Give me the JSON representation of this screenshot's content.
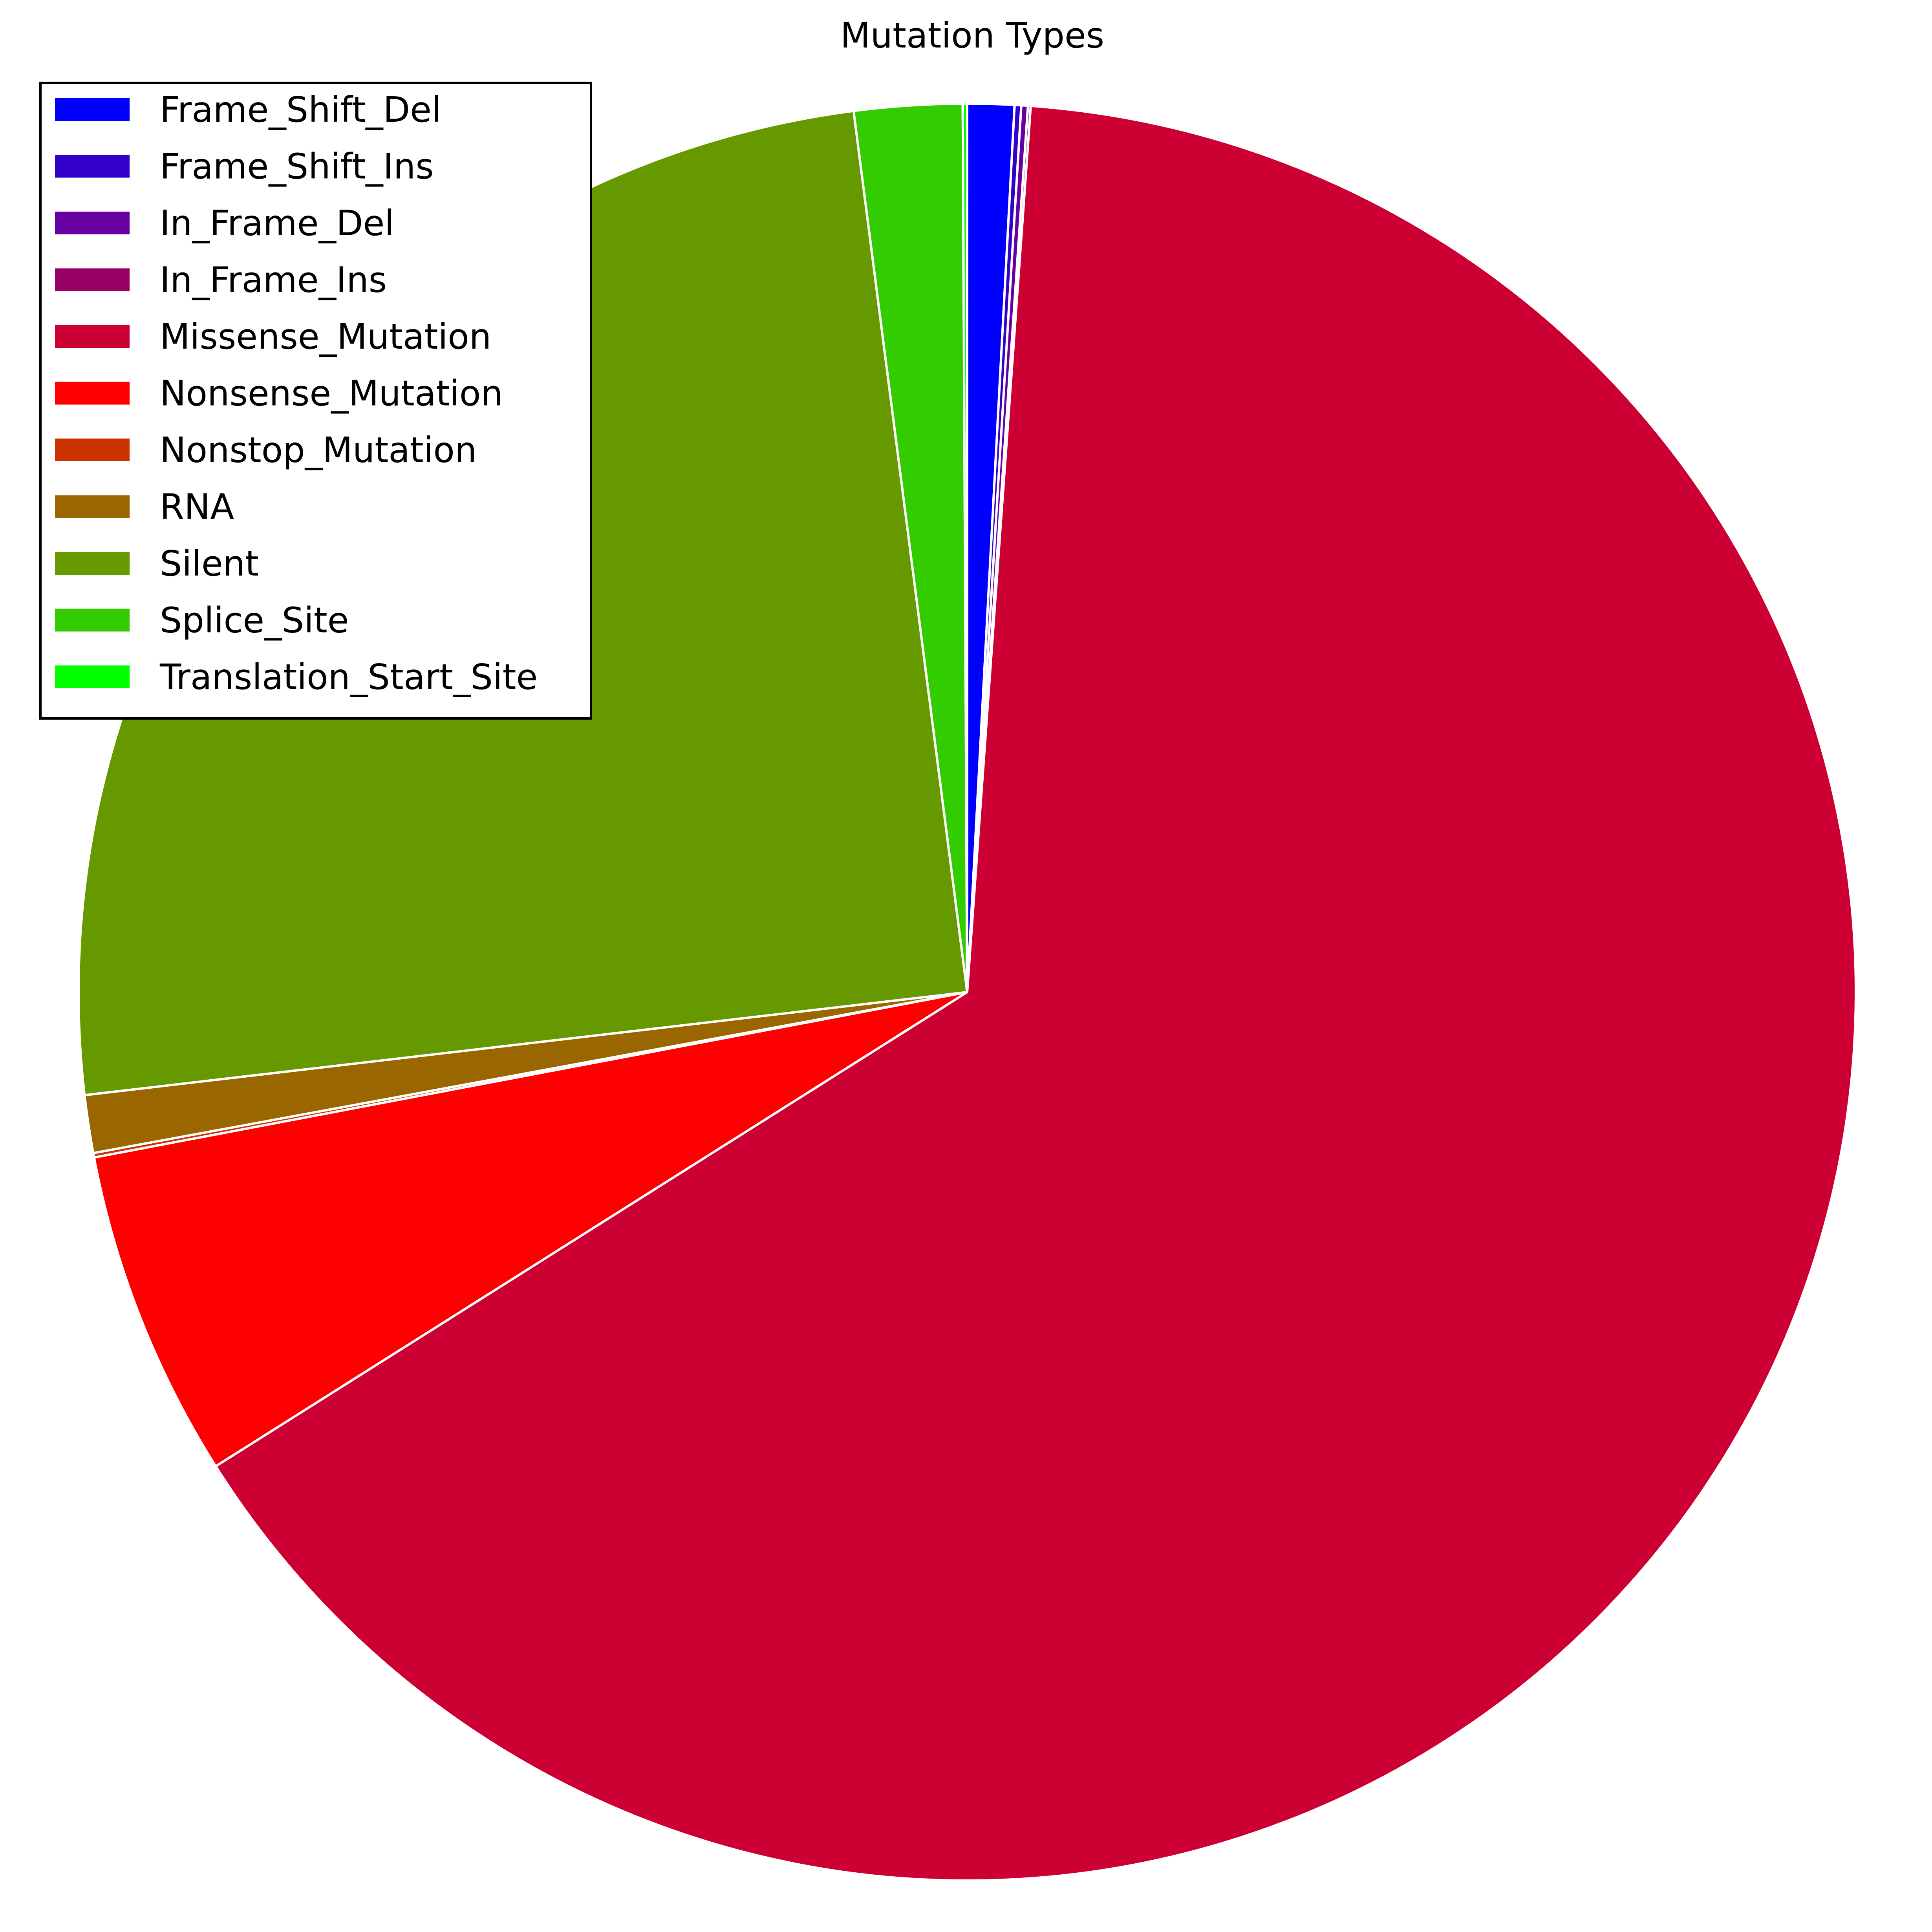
{
  "chart_data": {
    "type": "pie",
    "title": "Mutation Types",
    "start_angle_deg": 90,
    "direction": "clockwise",
    "edge_color": "#ffffff",
    "legend_position": "upper-left",
    "slices": [
      {
        "label": "Frame_Shift_Del",
        "value": 0.85,
        "color": "#0000ff"
      },
      {
        "label": "Frame_Shift_Ins",
        "value": 0.12,
        "color": "#3300cc"
      },
      {
        "label": "In_Frame_Del",
        "value": 0.12,
        "color": "#6600a0"
      },
      {
        "label": "In_Frame_Ins",
        "value": 0.05,
        "color": "#990066"
      },
      {
        "label": "Missense_Mutation",
        "value": 64.9,
        "color": "#cc0033"
      },
      {
        "label": "Nonsense_Mutation",
        "value": 5.98,
        "color": "#ff0000"
      },
      {
        "label": "Nonstop_Mutation",
        "value": 0.08,
        "color": "#cc3300"
      },
      {
        "label": "RNA",
        "value": 1.05,
        "color": "#996600"
      },
      {
        "label": "Silent",
        "value": 24.81,
        "color": "#669900"
      },
      {
        "label": "Splice_Site",
        "value": 1.96,
        "color": "#33cc00"
      },
      {
        "label": "Translation_Start_Site",
        "value": 0.08,
        "color": "#00ff00"
      }
    ]
  }
}
